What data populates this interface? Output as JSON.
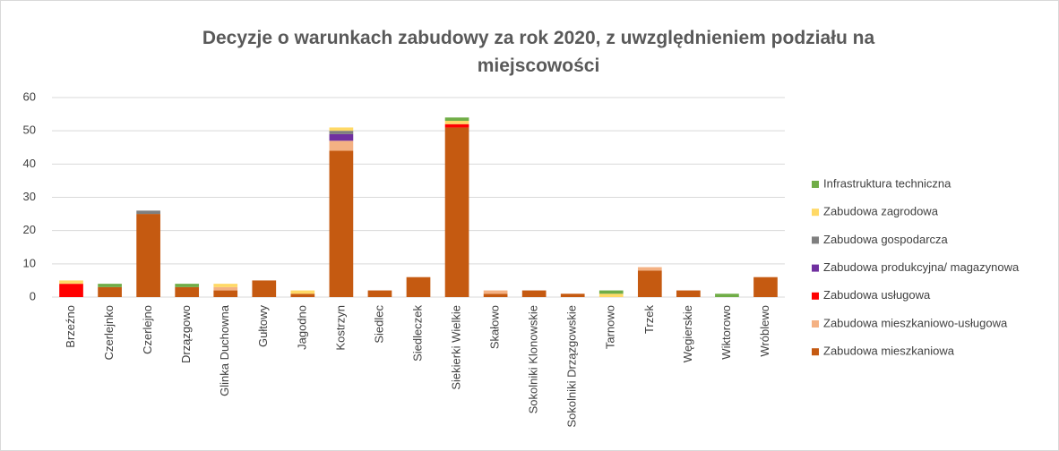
{
  "chart_data": {
    "type": "stacked_bar",
    "title": "Decyzje o warunkach zabudowy za rok 2020, z uwzględnieniem podziału na miejscowości",
    "categories": [
      "Brzeźno",
      "Czerlejnko",
      "Czerlejno",
      "Drzązgowo",
      "Glinka Duchowna",
      "Gułtowy",
      "Jagodno",
      "Kostrzyn",
      "Siedlec",
      "Siedleczek",
      "Siekierki Wielkie",
      "Skałowo",
      "Sokolniki Klonowskie",
      "Sokolniki Drzązgowskie",
      "Tarnowo",
      "Trzek",
      "Węgierskie",
      "Wiktorowo",
      "Wróblewo"
    ],
    "series": [
      {
        "name": "Zabudowa mieszkaniowa",
        "color": "#c55a11",
        "values": [
          0,
          3,
          25,
          3,
          2,
          5,
          1,
          44,
          2,
          6,
          51,
          1,
          2,
          1,
          0,
          8,
          2,
          0,
          6
        ]
      },
      {
        "name": "Zabudowa mieszkaniowo-usługowa",
        "color": "#f4b183",
        "values": [
          0,
          0,
          0,
          0,
          1,
          0,
          0,
          3,
          0,
          0,
          0,
          1,
          0,
          0,
          0,
          1,
          0,
          0,
          0
        ]
      },
      {
        "name": "Zabudowa usługowa",
        "color": "#ff0000",
        "values": [
          4,
          0,
          0,
          0,
          0,
          0,
          0,
          0,
          0,
          0,
          1,
          0,
          0,
          0,
          0,
          0,
          0,
          0,
          0
        ]
      },
      {
        "name": "Zabudowa produkcyjna/ magazynowa",
        "color": "#7030a0",
        "values": [
          0,
          0,
          0,
          0,
          0,
          0,
          0,
          2,
          0,
          0,
          0,
          0,
          0,
          0,
          0,
          0,
          0,
          0,
          0
        ]
      },
      {
        "name": "Zabudowa gospodarcza",
        "color": "#7f7f7f",
        "values": [
          0,
          0,
          1,
          0,
          0,
          0,
          0,
          1,
          0,
          0,
          0,
          0,
          0,
          0,
          0,
          0,
          0,
          0,
          0
        ]
      },
      {
        "name": "Zabudowa zagrodowa",
        "color": "#ffd966",
        "values": [
          1,
          0,
          0,
          0,
          1,
          0,
          1,
          1,
          0,
          0,
          1,
          0,
          0,
          0,
          1,
          0,
          0,
          0,
          0
        ]
      },
      {
        "name": "Infrastruktura techniczna",
        "color": "#70ad47",
        "values": [
          0,
          1,
          0,
          1,
          0,
          0,
          0,
          0,
          0,
          0,
          1,
          0,
          0,
          0,
          1,
          0,
          0,
          1,
          0
        ]
      }
    ],
    "ylim": [
      0,
      60
    ],
    "yticks": [
      0,
      10,
      20,
      30,
      40,
      50,
      60
    ],
    "grid": true,
    "legend": "right"
  }
}
